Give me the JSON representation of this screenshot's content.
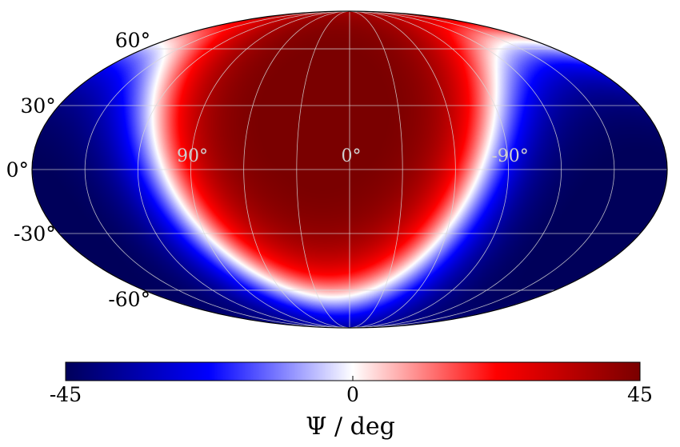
{
  "chart_data": {
    "type": "heatmap",
    "projection": "mollweide",
    "colormap": [
      "#00005a",
      "#0000ff",
      "#ffffff",
      "#ff0000",
      "#7a0000"
    ],
    "grid": true,
    "lat_ticks": [
      {
        "lat": 60,
        "label": "60°"
      },
      {
        "lat": 30,
        "label": "30°"
      },
      {
        "lat": 0,
        "label": "0°"
      },
      {
        "lat": -30,
        "label": "-30°"
      },
      {
        "lat": -60,
        "label": "-60°"
      }
    ],
    "lon_ticks": [
      {
        "lon": 90,
        "label": "90°"
      },
      {
        "lon": 0,
        "label": "0°"
      },
      {
        "lon": -90,
        "label": "-90°"
      }
    ],
    "field": {
      "max_value_deg": 45,
      "positive_center_lon_deg": 0,
      "positive_center_lat_deg": 30,
      "negative_center_lon_deg": -150,
      "negative_center_lat_deg": -20
    },
    "colorbar": {
      "min": -45,
      "max": 45,
      "ticks": [
        {
          "value": -45,
          "label": "-45"
        },
        {
          "value": 0,
          "label": "0"
        },
        {
          "value": 45,
          "label": "45"
        }
      ],
      "label": "Ψ / deg"
    }
  }
}
